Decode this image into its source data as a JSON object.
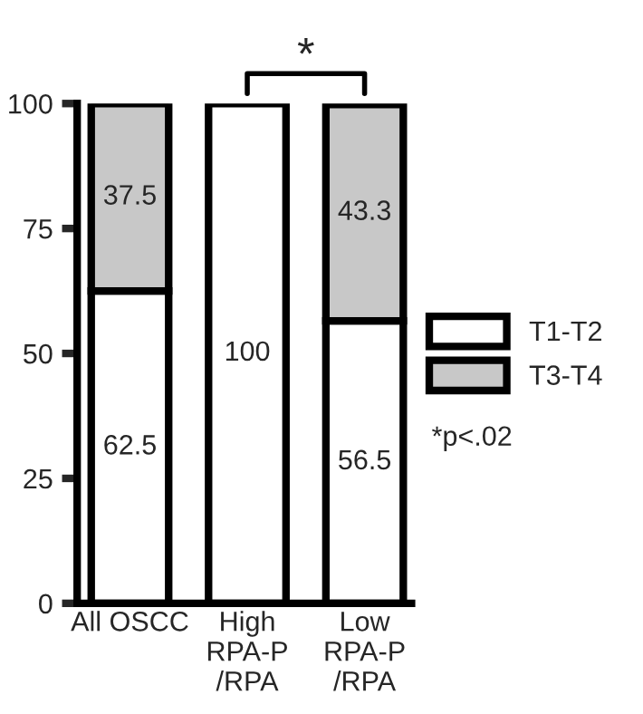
{
  "chart_data": {
    "type": "bar",
    "stacked": true,
    "categories": [
      "All OSCC",
      "High\nRPA-P\n/RPA",
      "Low\nRPA-P\n/RPA"
    ],
    "series": [
      {
        "name": "T1-T2",
        "color": "#ffffff",
        "values": [
          62.5,
          100,
          56.5
        ],
        "value_labels": [
          "62.5",
          "100",
          "56.5"
        ]
      },
      {
        "name": "T3-T4",
        "color": "#c8c8c8",
        "values": [
          37.5,
          null,
          43.3
        ],
        "value_labels": [
          "37.5",
          null,
          "43.3"
        ]
      }
    ],
    "ylim": [
      0,
      100
    ],
    "yticks": [
      0,
      25,
      50,
      75,
      100
    ],
    "grid": false,
    "legend": "right",
    "annotations": [
      "*",
      "*p<.02"
    ]
  }
}
